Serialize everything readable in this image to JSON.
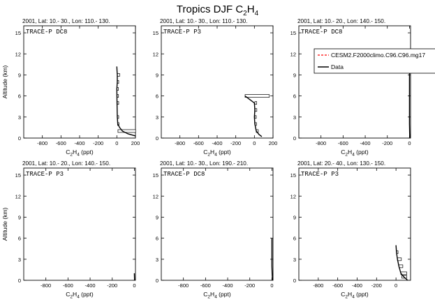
{
  "figure_title": "Tropics DJF C",
  "figure_title_sub": "2",
  "figure_title_tail": "H",
  "figure_title_sub2": "4",
  "legend": {
    "model_label": "CESM2.F2000climo.C96.C96.mg17",
    "data_label": "Data",
    "model_color": "#ff0000",
    "data_color": "#000000"
  },
  "chart_data": [
    {
      "type": "line",
      "title": "2001, Lat: 10.- 30., Lon: 110.- 130.",
      "campaign": "TRACE-P DC8",
      "xlabel": "C2H4 (ppt)",
      "ylabel": "Altitude (km)",
      "xlim": [
        -1000,
        200
      ],
      "ylim": [
        0,
        16
      ],
      "xticks": [
        -800,
        -600,
        -400,
        -200,
        0,
        200
      ],
      "yticks": [
        0,
        3,
        6,
        9,
        12,
        15
      ],
      "data_line": [
        [
          0,
          10.2
        ],
        [
          2,
          9.6
        ],
        [
          5,
          9.0
        ],
        [
          5,
          8.0
        ],
        [
          0,
          7.0
        ],
        [
          2,
          5.0
        ],
        [
          5,
          3.0
        ],
        [
          10,
          2.0
        ],
        [
          30,
          1.5
        ],
        [
          60,
          1.0
        ],
        [
          120,
          0.6
        ],
        [
          200,
          0.3
        ]
      ],
      "boxes": [
        [
          5,
          9.0,
          25
        ],
        [
          5,
          8.0,
          15
        ],
        [
          2,
          7.0,
          12
        ],
        [
          3,
          6.0,
          8
        ],
        [
          5,
          5.0,
          8
        ],
        [
          5,
          3.0,
          14
        ],
        [
          8,
          2.0,
          14
        ],
        [
          12,
          1.0,
          190
        ]
      ]
    },
    {
      "type": "line",
      "title": "2001, Lat: 10.- 30., Lon: 110.- 130.",
      "campaign": "TRACE-P P3",
      "xlabel": "C2H4 (ppt)",
      "ylabel": "",
      "xlim": [
        -1000,
        200
      ],
      "ylim": [
        0,
        16
      ],
      "xticks": [
        -800,
        -600,
        -400,
        -200,
        0,
        200
      ],
      "yticks": [
        0,
        3,
        6,
        9,
        12,
        15
      ],
      "data_line": [
        [
          -100,
          6.0
        ],
        [
          -50,
          5.5
        ],
        [
          0,
          5.0
        ],
        [
          5,
          4.0
        ],
        [
          0,
          3.0
        ],
        [
          5,
          2.0
        ],
        [
          20,
          1.0
        ],
        [
          50,
          0.5
        ],
        [
          80,
          0.2
        ]
      ],
      "boxes": [
        [
          -100,
          6.0,
          260
        ],
        [
          5,
          5.0,
          20
        ],
        [
          8,
          4.0,
          18
        ],
        [
          5,
          3.0,
          14
        ],
        [
          8,
          2.0,
          14
        ],
        [
          20,
          1.0,
          22
        ]
      ]
    },
    {
      "type": "line",
      "title": "2001, Lat: 10.- 20., Lon: 140.- 150.",
      "campaign": "TRACE-P DC8",
      "xlabel": "C2H4 (ppt)",
      "ylabel": "",
      "xlim": [
        -1000,
        10
      ],
      "ylim": [
        0,
        16
      ],
      "xticks": [
        -800,
        -600,
        -400,
        -200,
        0
      ],
      "yticks": [
        0,
        3,
        6,
        9,
        12,
        15
      ],
      "data_line": [
        [
          0,
          9.5
        ],
        [
          0,
          8.0
        ],
        [
          0,
          6.0
        ],
        [
          0,
          4.0
        ],
        [
          0,
          2.0
        ],
        [
          2,
          0.5
        ],
        [
          5,
          0.0
        ]
      ],
      "boxes": []
    },
    {
      "type": "line",
      "title": "2001, Lat: 10.- 20., Lon: 140.- 150.",
      "campaign": "TRACE-P P3",
      "xlabel": "C2H4 (ppt)",
      "ylabel": "Altitude (km)",
      "xlim": [
        -1000,
        10
      ],
      "ylim": [
        0,
        16
      ],
      "xticks": [
        -800,
        -600,
        -400,
        -200,
        0
      ],
      "yticks": [
        0,
        3,
        6,
        9,
        12,
        15
      ],
      "data_line": [
        [
          0,
          1.0
        ],
        [
          1,
          0.5
        ],
        [
          2,
          0.0
        ]
      ],
      "boxes": []
    },
    {
      "type": "line",
      "title": "2001, Lat: 10.- 30., Lon: 190.- 210.",
      "campaign": "TRACE-P DC8",
      "xlabel": "C2H4 (ppt)",
      "ylabel": "",
      "xlim": [
        -1000,
        10
      ],
      "ylim": [
        0,
        16
      ],
      "xticks": [
        -800,
        -600,
        -400,
        -200,
        0
      ],
      "yticks": [
        0,
        3,
        6,
        9,
        12,
        15
      ],
      "data_line": [
        [
          0,
          6.0
        ],
        [
          0,
          4.0
        ],
        [
          0,
          2.0
        ],
        [
          2,
          1.0
        ],
        [
          5,
          0.0
        ]
      ],
      "boxes": []
    },
    {
      "type": "line",
      "title": "2001, Lat: 20.- 40., Lon: 130.- 150.",
      "campaign": "TRACE-P P3",
      "xlabel": "C2H4 (ppt)",
      "ylabel": "",
      "xlim": [
        -1000,
        150
      ],
      "ylim": [
        0,
        16
      ],
      "xticks": [
        -800,
        -600,
        -400,
        -200,
        0
      ],
      "yticks": [
        0,
        3,
        6,
        9,
        12,
        15
      ],
      "data_line": [
        [
          0,
          5.0
        ],
        [
          5,
          4.0
        ],
        [
          15,
          3.0
        ],
        [
          30,
          2.0
        ],
        [
          50,
          1.0
        ],
        [
          80,
          0.5
        ],
        [
          120,
          0.0
        ]
      ],
      "boxes": [
        [
          5,
          4.0,
          16
        ],
        [
          15,
          3.0,
          40
        ],
        [
          30,
          2.0,
          40
        ],
        [
          50,
          1.0,
          60
        ],
        [
          60,
          0.5,
          50
        ]
      ]
    }
  ]
}
